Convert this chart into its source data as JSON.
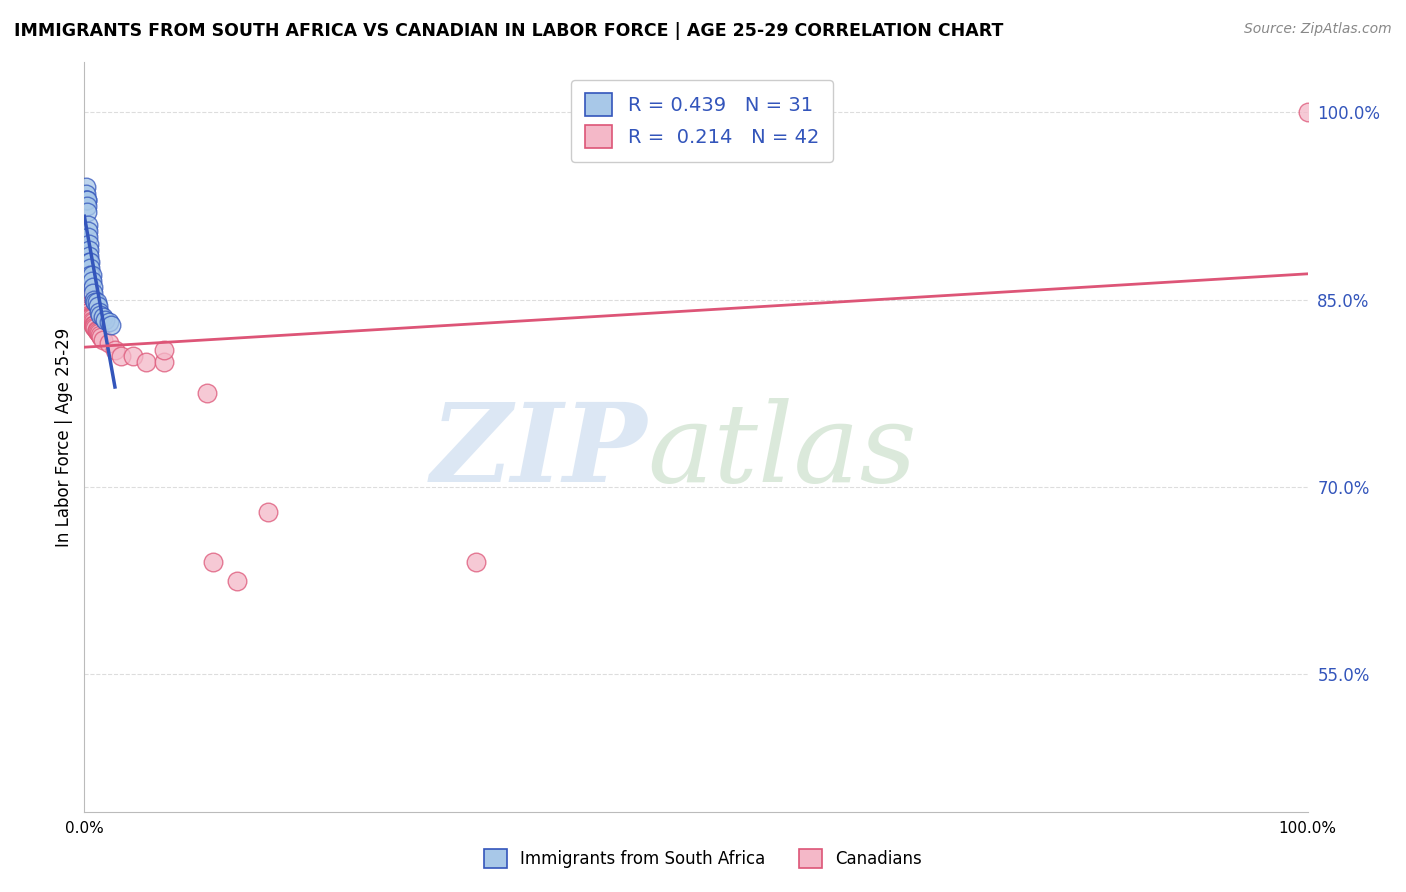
{
  "title": "IMMIGRANTS FROM SOUTH AFRICA VS CANADIAN IN LABOR FORCE | AGE 25-29 CORRELATION CHART",
  "source": "Source: ZipAtlas.com",
  "ylabel": "In Labor Force | Age 25-29",
  "legend_label1": "Immigrants from South Africa",
  "legend_label2": "Canadians",
  "r1": "0.439",
  "n1": "31",
  "r2": "0.214",
  "n2": "42",
  "blue_color": "#a8c8e8",
  "pink_color": "#f4b8c8",
  "line_blue": "#3355bb",
  "line_pink": "#dd5577",
  "blue_x": [
    0.001,
    0.001,
    0.001,
    0.002,
    0.002,
    0.002,
    0.002,
    0.003,
    0.003,
    0.003,
    0.004,
    0.004,
    0.004,
    0.004,
    0.005,
    0.005,
    0.005,
    0.006,
    0.006,
    0.007,
    0.007,
    0.008,
    0.009,
    0.01,
    0.011,
    0.012,
    0.013,
    0.015,
    0.017,
    0.02,
    0.022
  ],
  "blue_y": [
    0.94,
    0.935,
    0.93,
    0.93,
    0.93,
    0.925,
    0.92,
    0.91,
    0.905,
    0.9,
    0.895,
    0.89,
    0.885,
    0.88,
    0.88,
    0.875,
    0.87,
    0.87,
    0.865,
    0.86,
    0.855,
    0.85,
    0.848,
    0.848,
    0.845,
    0.84,
    0.838,
    0.836,
    0.834,
    0.832,
    0.83
  ],
  "pink_x": [
    0.001,
    0.001,
    0.001,
    0.002,
    0.002,
    0.002,
    0.003,
    0.003,
    0.003,
    0.004,
    0.004,
    0.004,
    0.005,
    0.005,
    0.005,
    0.006,
    0.006,
    0.007,
    0.007,
    0.008,
    0.008,
    0.009,
    0.01,
    0.01,
    0.011,
    0.012,
    0.013,
    0.014,
    0.015,
    0.02,
    0.025,
    0.03,
    0.04,
    0.05,
    0.065,
    0.065,
    0.1,
    0.105,
    0.125,
    0.15,
    0.32,
    1.0
  ],
  "pink_y": [
    0.855,
    0.855,
    0.85,
    0.85,
    0.848,
    0.845,
    0.845,
    0.843,
    0.842,
    0.84,
    0.84,
    0.838,
    0.837,
    0.836,
    0.835,
    0.835,
    0.833,
    0.832,
    0.83,
    0.83,
    0.828,
    0.827,
    0.826,
    0.825,
    0.824,
    0.823,
    0.822,
    0.82,
    0.818,
    0.815,
    0.81,
    0.805,
    0.805,
    0.8,
    0.8,
    0.81,
    0.775,
    0.64,
    0.625,
    0.68,
    0.64,
    1.0
  ],
  "xmin": 0.0,
  "xmax": 1.0,
  "ymin": 0.44,
  "ymax": 1.04,
  "ytick_values": [
    0.55,
    0.7,
    0.85,
    1.0
  ],
  "ytick_labels": [
    "55.0%",
    "70.0%",
    "85.0%",
    "100.0%"
  ],
  "grid_color": "#dddddd",
  "watermark_zip_color": "#c8daf0",
  "watermark_atlas_color": "#c8dcc8"
}
